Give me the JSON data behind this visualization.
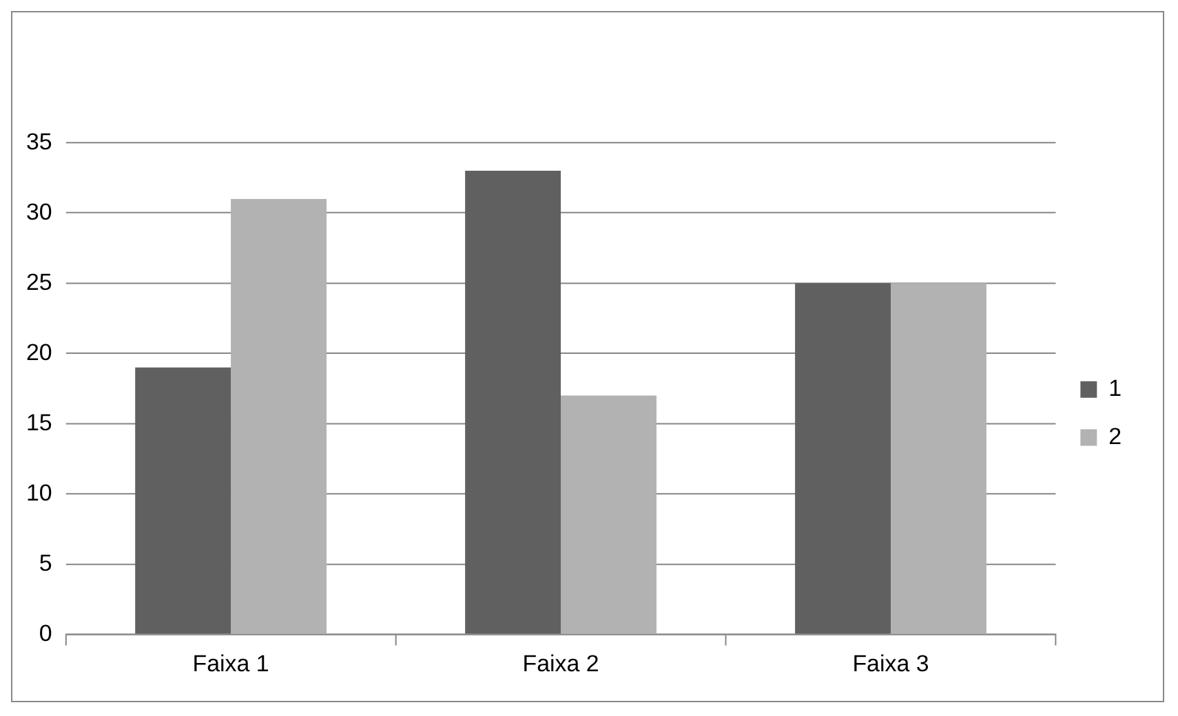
{
  "chart_data": {
    "type": "bar",
    "categories": [
      "Faixa 1",
      "Faixa 2",
      "Faixa 3"
    ],
    "series": [
      {
        "name": "1",
        "color": "#606060",
        "values": [
          19,
          33,
          25
        ]
      },
      {
        "name": "2",
        "color": "#b2b2b2",
        "values": [
          31,
          17,
          25
        ]
      }
    ],
    "ylim": [
      0,
      35
    ],
    "yticks": [
      0,
      5,
      10,
      15,
      20,
      25,
      30,
      35
    ],
    "grid": "y",
    "legend": "right"
  }
}
